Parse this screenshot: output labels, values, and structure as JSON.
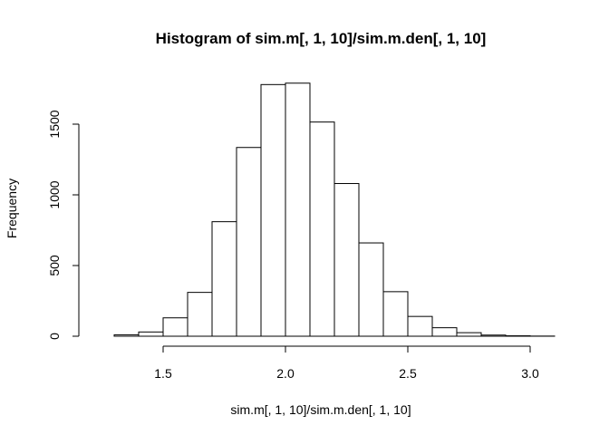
{
  "chart_data": {
    "type": "bar",
    "title": "Histogram of sim.m[, 1, 10]/sim.m.den[, 1, 10]",
    "xlabel": "sim.m[, 1, 10]/sim.m.den[, 1, 10]",
    "ylabel": "Frequency",
    "xlim": [
      1.2,
      3.1
    ],
    "ylim": [
      0,
      1800
    ],
    "x_ticks": [
      "1.5",
      "2.0",
      "2.5",
      "3.0"
    ],
    "y_ticks": [
      "0",
      "500",
      "1000",
      "1500"
    ],
    "grid": false,
    "bins": [
      {
        "x0": 1.2,
        "x1": 1.3,
        "count": 0
      },
      {
        "x0": 1.3,
        "x1": 1.4,
        "count": 10
      },
      {
        "x0": 1.4,
        "x1": 1.5,
        "count": 30
      },
      {
        "x0": 1.5,
        "x1": 1.6,
        "count": 130
      },
      {
        "x0": 1.6,
        "x1": 1.7,
        "count": 310
      },
      {
        "x0": 1.7,
        "x1": 1.8,
        "count": 810
      },
      {
        "x0": 1.8,
        "x1": 1.9,
        "count": 1335
      },
      {
        "x0": 1.9,
        "x1": 2.0,
        "count": 1780
      },
      {
        "x0": 2.0,
        "x1": 2.1,
        "count": 1790
      },
      {
        "x0": 2.1,
        "x1": 2.2,
        "count": 1515
      },
      {
        "x0": 2.2,
        "x1": 2.3,
        "count": 1080
      },
      {
        "x0": 2.3,
        "x1": 2.4,
        "count": 660
      },
      {
        "x0": 2.4,
        "x1": 2.5,
        "count": 315
      },
      {
        "x0": 2.5,
        "x1": 2.6,
        "count": 140
      },
      {
        "x0": 2.6,
        "x1": 2.7,
        "count": 60
      },
      {
        "x0": 2.7,
        "x1": 2.8,
        "count": 25
      },
      {
        "x0": 2.8,
        "x1": 2.9,
        "count": 8
      },
      {
        "x0": 2.9,
        "x1": 3.0,
        "count": 3
      },
      {
        "x0": 3.0,
        "x1": 3.1,
        "count": 1
      }
    ]
  }
}
